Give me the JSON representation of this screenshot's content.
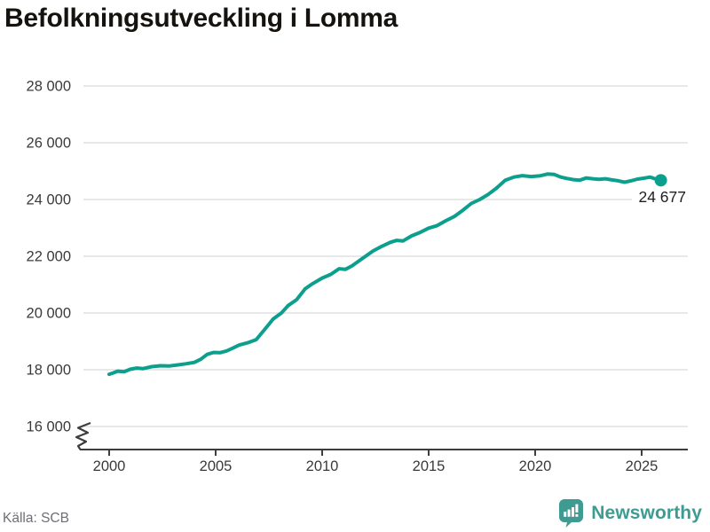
{
  "title": "Befolkningsutveckling i Lomma",
  "footer": {
    "source": "Källa: SCB",
    "brand": "Newsworthy"
  },
  "colors": {
    "line": "#0c9f8d",
    "grid": "#dbdbdb",
    "axis": "#3d3d3d",
    "tick_label": "#3a3a3a",
    "title": "#16130f",
    "end_label": "#1e1e1e",
    "source_text": "#6e6e77",
    "brand": "#3e9b91",
    "background": "#ffffff"
  },
  "chart_data": {
    "type": "line",
    "title": "Befolkningsutveckling i Lomma",
    "xlabel": "",
    "ylabel": "",
    "grid": "horizontal",
    "legend": "none",
    "xlim": [
      2000,
      2026.3
    ],
    "ylim": [
      16000,
      28000
    ],
    "axis_break_below_y": 16000,
    "x_ticks": [
      {
        "value": 2000,
        "label": "2000"
      },
      {
        "value": 2005,
        "label": "2005"
      },
      {
        "value": 2010,
        "label": "2010"
      },
      {
        "value": 2015,
        "label": "2015"
      },
      {
        "value": 2020,
        "label": "2020"
      },
      {
        "value": 2025,
        "label": "2025"
      }
    ],
    "y_ticks": [
      {
        "value": 28000,
        "label": "28 000"
      },
      {
        "value": 26000,
        "label": "26 000"
      },
      {
        "value": 24000,
        "label": "24 000"
      },
      {
        "value": 22000,
        "label": "22 000"
      },
      {
        "value": 20000,
        "label": "20 000"
      },
      {
        "value": 18000,
        "label": "18 000"
      },
      {
        "value": 16000,
        "label": "16 000"
      }
    ],
    "series": [
      {
        "points": [
          [
            2000.0,
            17840
          ],
          [
            2000.2,
            17890
          ],
          [
            2000.4,
            17950
          ],
          [
            2000.7,
            17930
          ],
          [
            2001.0,
            18020
          ],
          [
            2001.3,
            18060
          ],
          [
            2001.6,
            18040
          ],
          [
            2002.0,
            18110
          ],
          [
            2002.4,
            18140
          ],
          [
            2002.8,
            18130
          ],
          [
            2003.2,
            18170
          ],
          [
            2003.6,
            18210
          ],
          [
            2004.0,
            18260
          ],
          [
            2004.3,
            18370
          ],
          [
            2004.6,
            18540
          ],
          [
            2004.9,
            18610
          ],
          [
            2005.2,
            18600
          ],
          [
            2005.5,
            18660
          ],
          [
            2005.8,
            18760
          ],
          [
            2006.1,
            18870
          ],
          [
            2006.5,
            18950
          ],
          [
            2006.9,
            19060
          ],
          [
            2007.3,
            19420
          ],
          [
            2007.7,
            19790
          ],
          [
            2008.1,
            20010
          ],
          [
            2008.4,
            20260
          ],
          [
            2008.8,
            20470
          ],
          [
            2009.2,
            20850
          ],
          [
            2009.5,
            21010
          ],
          [
            2010.0,
            21230
          ],
          [
            2010.4,
            21360
          ],
          [
            2010.8,
            21560
          ],
          [
            2011.1,
            21540
          ],
          [
            2011.4,
            21660
          ],
          [
            2011.7,
            21820
          ],
          [
            2012.0,
            21980
          ],
          [
            2012.4,
            22190
          ],
          [
            2012.8,
            22350
          ],
          [
            2013.2,
            22490
          ],
          [
            2013.5,
            22560
          ],
          [
            2013.8,
            22540
          ],
          [
            2014.2,
            22720
          ],
          [
            2014.6,
            22840
          ],
          [
            2015.0,
            22990
          ],
          [
            2015.4,
            23080
          ],
          [
            2015.8,
            23250
          ],
          [
            2016.2,
            23400
          ],
          [
            2016.6,
            23620
          ],
          [
            2017.0,
            23860
          ],
          [
            2017.4,
            24000
          ],
          [
            2017.8,
            24180
          ],
          [
            2018.2,
            24410
          ],
          [
            2018.6,
            24680
          ],
          [
            2019.0,
            24790
          ],
          [
            2019.4,
            24840
          ],
          [
            2019.8,
            24810
          ],
          [
            2020.2,
            24830
          ],
          [
            2020.6,
            24900
          ],
          [
            2020.9,
            24880
          ],
          [
            2021.2,
            24790
          ],
          [
            2021.5,
            24740
          ],
          [
            2021.8,
            24700
          ],
          [
            2022.1,
            24680
          ],
          [
            2022.4,
            24760
          ],
          [
            2022.7,
            24730
          ],
          [
            2023.0,
            24710
          ],
          [
            2023.3,
            24730
          ],
          [
            2023.6,
            24690
          ],
          [
            2023.9,
            24660
          ],
          [
            2024.2,
            24610
          ],
          [
            2024.5,
            24660
          ],
          [
            2024.8,
            24720
          ],
          [
            2025.1,
            24750
          ],
          [
            2025.4,
            24790
          ],
          [
            2025.7,
            24710
          ],
          [
            2025.9,
            24677
          ]
        ]
      }
    ],
    "end_point": {
      "x": 2025.9,
      "y": 24677,
      "label": "24 677"
    }
  }
}
